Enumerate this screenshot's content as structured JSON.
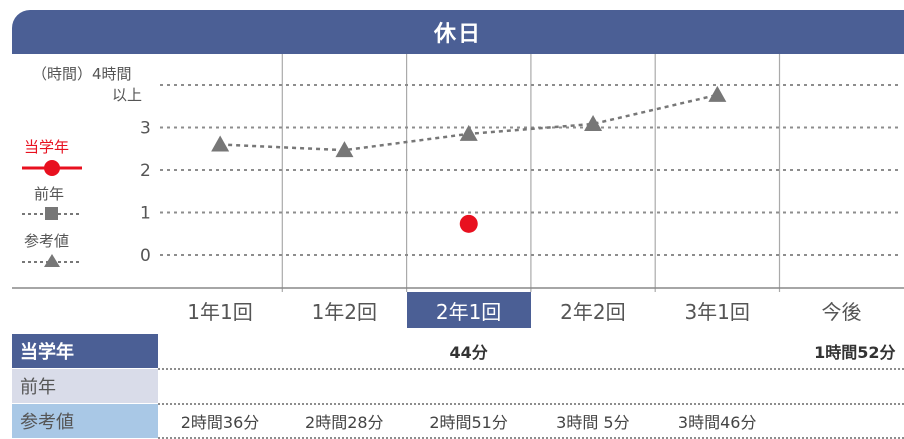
{
  "header": {
    "title": "休日"
  },
  "legend": {
    "current": "当学年",
    "previous": "前年",
    "reference": "参考値"
  },
  "y_axis": {
    "unit_label": "（時間）",
    "top_label_line1": "4時間",
    "top_label_line2": "以上",
    "ticks": [
      "3",
      "2",
      "1",
      "0"
    ]
  },
  "chart_data": {
    "type": "line",
    "categories": [
      "1年1回",
      "1年2回",
      "2年1回",
      "2年2回",
      "3年1回",
      "今後"
    ],
    "active_category": "2年1回",
    "ylim": [
      0,
      4
    ],
    "series": [
      {
        "name": "当学年",
        "values": [
          null,
          null,
          0.733,
          null,
          null,
          null
        ],
        "color": "#e8101f",
        "marker": "circle"
      },
      {
        "name": "前年",
        "values": [
          null,
          null,
          null,
          null,
          null,
          null
        ],
        "color": "#777777",
        "marker": "square"
      },
      {
        "name": "参考値",
        "values": [
          2.6,
          2.467,
          2.85,
          3.083,
          3.767,
          null
        ],
        "color": "#777777",
        "marker": "triangle",
        "line": "dotted"
      }
    ],
    "grid": true
  },
  "table": {
    "rows": [
      {
        "label": "当学年",
        "cells": [
          "",
          "",
          "44分",
          "",
          "",
          "1時間52分"
        ]
      },
      {
        "label": "前年",
        "cells": [
          "",
          "",
          "",
          "",
          "",
          ""
        ]
      },
      {
        "label": "参考値",
        "cells": [
          "2時間36分",
          "2時間28分",
          "2時間51分",
          "3時間 5分",
          "3時間46分",
          ""
        ]
      }
    ]
  }
}
